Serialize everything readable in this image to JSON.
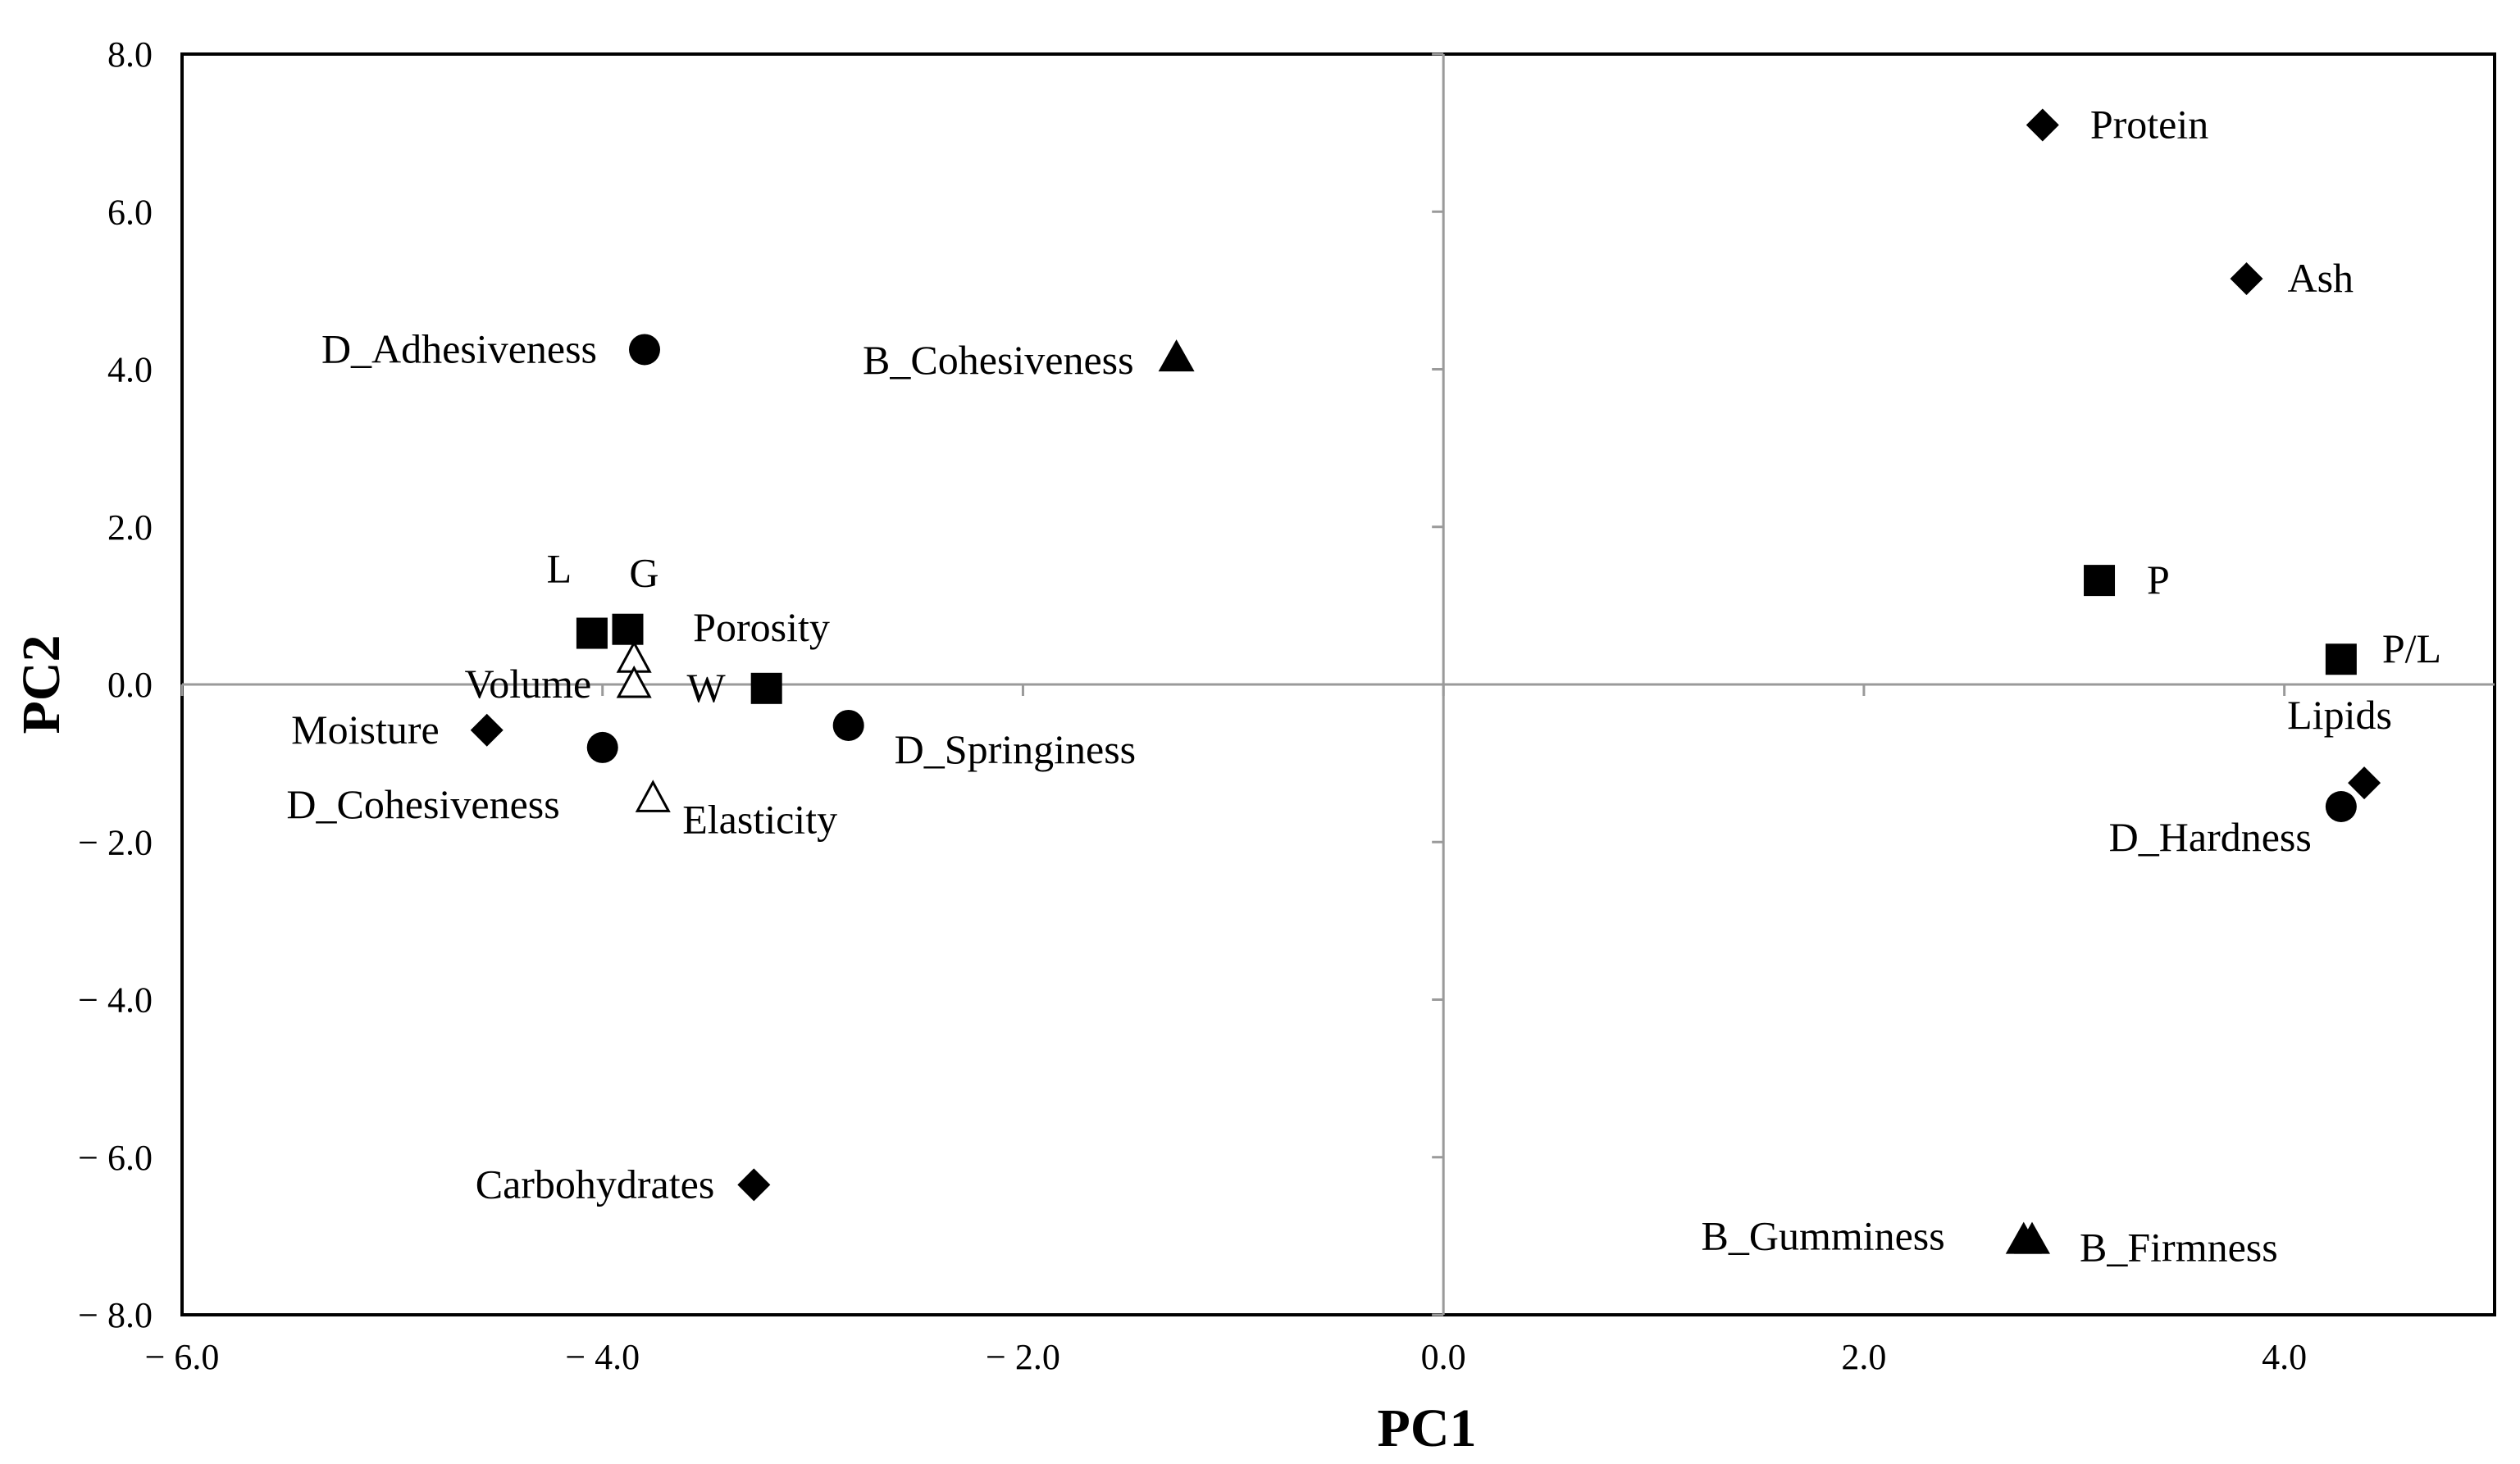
{
  "chart_data": {
    "type": "scatter",
    "title": "",
    "xlabel": "PC1",
    "ylabel": "PC2",
    "xlim": [
      -6.0,
      5.0
    ],
    "ylim": [
      -8.0,
      8.0
    ],
    "grid": false,
    "x_ticks": [
      -6.0,
      -4.0,
      -2.0,
      0.0,
      2.0,
      4.0
    ],
    "y_ticks": [
      -8.0,
      -6.0,
      -4.0,
      -2.0,
      0.0,
      2.0,
      4.0,
      6.0,
      8.0
    ],
    "x_tick_labels": [
      "− 6.0",
      "− 4.0",
      "− 2.0",
      "0.0",
      "2.0",
      "4.0"
    ],
    "y_tick_labels": [
      "− 8.0",
      "− 6.0",
      "− 4.0",
      "− 2.0",
      "0.0",
      "2.0",
      "4.0",
      "6.0",
      "8.0"
    ],
    "points": [
      {
        "label": "Protein",
        "x": 2.85,
        "y": 7.1,
        "marker": "diamond"
      },
      {
        "label": "Ash",
        "x": 3.82,
        "y": 5.15,
        "marker": "diamond"
      },
      {
        "label": "Moisture",
        "x": -4.55,
        "y": -0.58,
        "marker": "diamond"
      },
      {
        "label": "Carbohydrates",
        "x": -3.28,
        "y": -6.35,
        "marker": "diamond"
      },
      {
        "label": "Lipids",
        "x": 4.38,
        "y": -1.25,
        "marker": "diamond"
      },
      {
        "label": "L",
        "x": -4.05,
        "y": 0.65,
        "marker": "square"
      },
      {
        "label": "G",
        "x": -3.88,
        "y": 0.7,
        "marker": "square"
      },
      {
        "label": "W",
        "x": -3.22,
        "y": -0.05,
        "marker": "square"
      },
      {
        "label": "P",
        "x": 3.12,
        "y": 1.32,
        "marker": "square"
      },
      {
        "label": "P/L",
        "x": 4.27,
        "y": 0.32,
        "marker": "square"
      },
      {
        "label": "D_Adhesiveness",
        "x": -3.8,
        "y": 4.25,
        "marker": "circle"
      },
      {
        "label": "D_Springiness",
        "x": -2.83,
        "y": -0.52,
        "marker": "circle"
      },
      {
        "label": "D_Cohesiveness",
        "x": -4.0,
        "y": -0.8,
        "marker": "circle"
      },
      {
        "label": "D_Hardness",
        "x": 4.27,
        "y": -1.55,
        "marker": "circle"
      },
      {
        "label": "B_Cohesiveness",
        "x": -1.27,
        "y": 4.15,
        "marker": "triangle"
      },
      {
        "label": "B_Gumminess",
        "x": 2.76,
        "y": -7.05,
        "marker": "triangle"
      },
      {
        "label": "B_Firmness",
        "x": 2.8,
        "y": -7.05,
        "marker": "triangle"
      },
      {
        "label": "Porosity",
        "x": -3.85,
        "y": 0.32,
        "marker": "triangle-open"
      },
      {
        "label": "Volume",
        "x": -3.85,
        "y": 0.0,
        "marker": "triangle-open"
      },
      {
        "label": "Elasticity",
        "x": -3.76,
        "y": -1.45,
        "marker": "triangle-open"
      }
    ]
  }
}
